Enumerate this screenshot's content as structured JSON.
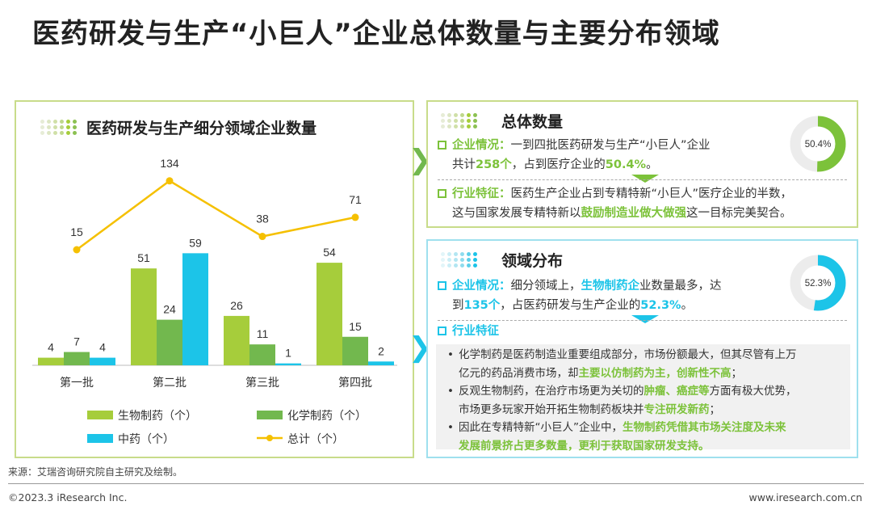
{
  "title": "医药研发与生产“小巨人”企业总体数量与主要分布领域",
  "colors": {
    "green_light": "#a6cd3b",
    "green_dark": "#72b84e",
    "blue": "#1cc4e8",
    "yellow": "#f5c000",
    "accent_green": "#7cc23a",
    "accent_blue": "#1cc4e8"
  },
  "left_panel": {
    "title": "医药研发与生产细分领域企业数量"
  },
  "chart_data": {
    "type": "bar",
    "title": "医药研发与生产细分领域企业数量",
    "categories": [
      "第一批",
      "第二批",
      "第三批",
      "第四批"
    ],
    "series": [
      {
        "name": "生物制药（个）",
        "type": "bar",
        "color": "#a6cd3b",
        "values": [
          4,
          51,
          26,
          54
        ]
      },
      {
        "name": "化学制药（个）",
        "type": "bar",
        "color": "#72b84e",
        "values": [
          7,
          24,
          11,
          15
        ]
      },
      {
        "name": "中药（个）",
        "type": "bar",
        "color": "#1cc4e8",
        "values": [
          4,
          59,
          1,
          2
        ]
      },
      {
        "name": "总计（个）",
        "type": "line",
        "color": "#f5c000",
        "values": [
          15,
          134,
          38,
          71
        ]
      }
    ],
    "legend_position": "bottom",
    "grid": false
  },
  "overall": {
    "title": "总体数量",
    "donut_label": "50.4%",
    "donut_value": 0.504,
    "item1_label": "企业情况：",
    "item1_line1": "一到四批医药研发与生产“小巨人”企业",
    "item1_l2_a": "共计",
    "item1_l2_b": "258个",
    "item1_l2_c": "，占到医疗企业的",
    "item1_l2_d": "50.4%",
    "item1_l2_e": "。",
    "item2_label": "行业特征：",
    "item2_line1": "医药生产企业占到专精特新“小巨人”医疗企业的半数，",
    "item2_l2_a": "这与国家发展专精特新以",
    "item2_l2_b": "鼓励制造业做大做强",
    "item2_l2_c": "这一目标完美契合。"
  },
  "distribution": {
    "title": "领域分布",
    "donut_label": "52.3%",
    "donut_value": 0.523,
    "item1_label": "企业情况：",
    "item1_l1_a": "细分领域上，",
    "item1_l1_b": "生物制药企",
    "item1_l1_c": "业数量最多，达",
    "item1_l2_a": "到",
    "item1_l2_b": "135个",
    "item1_l2_c": "，占医药研发与生产企业的",
    "item1_l2_d": "52.3%",
    "item1_l2_e": "。",
    "item2_label": "行业特征",
    "b1_l1": "化学制药是医药制造业重要组成部分，市场份额最大，但其尽管有上万",
    "b1_l2_a": "亿元的药品消费市场，却",
    "b1_l2_b": "主要以仿制药为主，创新性不高",
    "b1_l2_c": "；",
    "b2_l1_a": "反观生物制药，在治疗市场更为关切的",
    "b2_l1_b": "肿瘤、癌症等",
    "b2_l1_c": "方面有极大优势，",
    "b2_l2_a": "市场更多玩家开始开拓生物制药板块并",
    "b2_l2_b": "专注研发新药",
    "b2_l2_c": "；",
    "b3_l1_a": "因此在专精特新“小巨人”企业中，",
    "b3_l1_b": "生物制药凭借其市场关注度及未来",
    "b3_l2": "发展前景挤占更多数量，更利于获取国家研发支持。"
  },
  "source": "来源：艾瑞咨询研究院自主研究及绘制。",
  "footer_left": "©2023.3 iResearch Inc.",
  "footer_right": "www.iresearch.com.cn"
}
